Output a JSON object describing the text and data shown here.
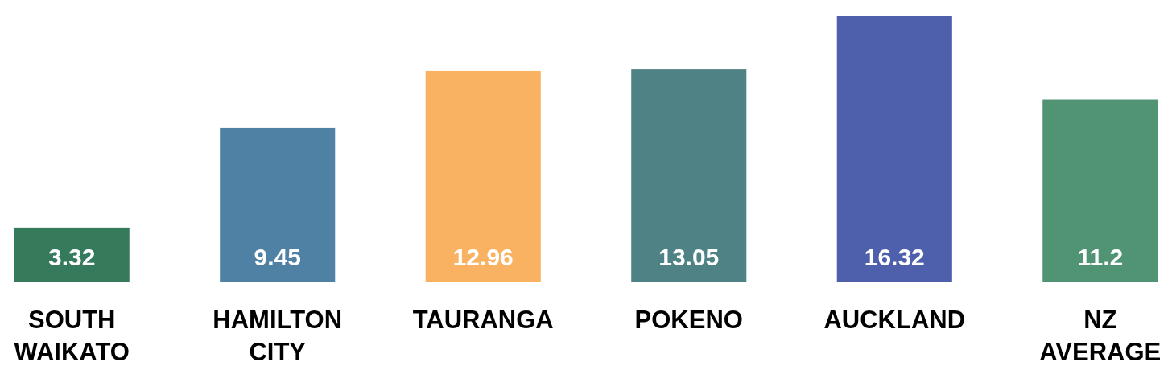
{
  "chart_data": {
    "type": "bar",
    "categories": [
      "SOUTH WAIKATO",
      "HAMILTON CITY",
      "TAURANGA",
      "POKENO",
      "AUCKLAND",
      "NZ AVERAGE"
    ],
    "values": [
      3.32,
      9.45,
      12.96,
      13.05,
      16.32,
      11.2
    ],
    "colors": [
      "#357a5a",
      "#4f81a4",
      "#f8b262",
      "#4e8284",
      "#4e5fac",
      "#519474"
    ],
    "data_labels": true
  }
}
